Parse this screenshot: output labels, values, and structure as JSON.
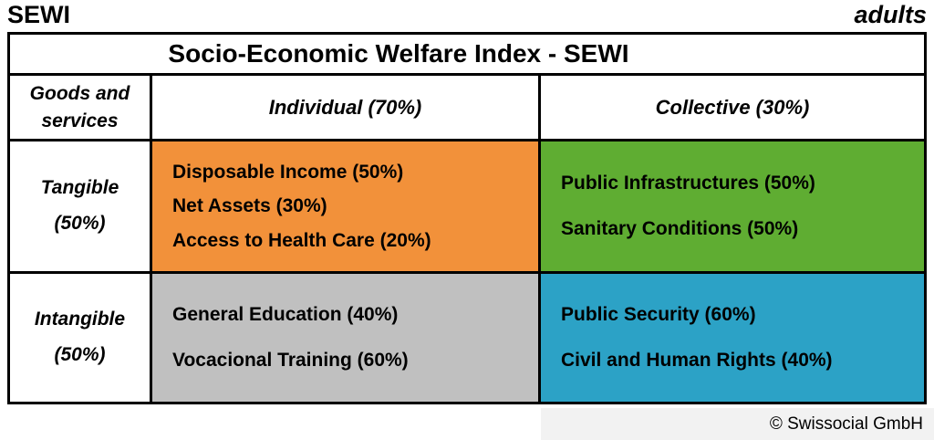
{
  "page": {
    "top_left": "SEWI",
    "top_right": "adults",
    "footer": "© Swissocial GmbH"
  },
  "table": {
    "title": "Socio-Economic Welfare Index - SEWI",
    "corner_header": "Goods and services",
    "columns": [
      {
        "label": "Individual (70%)"
      },
      {
        "label": "Collective (30%)"
      }
    ],
    "rows": [
      {
        "label": "Tangible (50%)",
        "cells": [
          {
            "color": "#F2913A",
            "items": [
              "Disposable Income (50%)",
              "Net Assets (30%)",
              "Access to Health Care (20%)"
            ]
          },
          {
            "color": "#5FAD32",
            "items": [
              "Public Infrastructures (50%)",
              "Sanitary Conditions (50%)"
            ]
          }
        ]
      },
      {
        "label": "Intangible (50%)",
        "cells": [
          {
            "color": "#C0C0C0",
            "items": [
              "General Education (40%)",
              "Vocacional Training (60%)"
            ]
          },
          {
            "color": "#2CA2C6",
            "items": [
              "Public Security (60%)",
              "Civil and Human Rights (40%)"
            ]
          }
        ]
      }
    ]
  },
  "colors": {
    "grid_line": "#000000",
    "orange": "#F2913A",
    "green": "#5FAD32",
    "gray": "#C0C0C0",
    "blue": "#2CA2C6",
    "footer_bg": "#F2F2F2"
  }
}
